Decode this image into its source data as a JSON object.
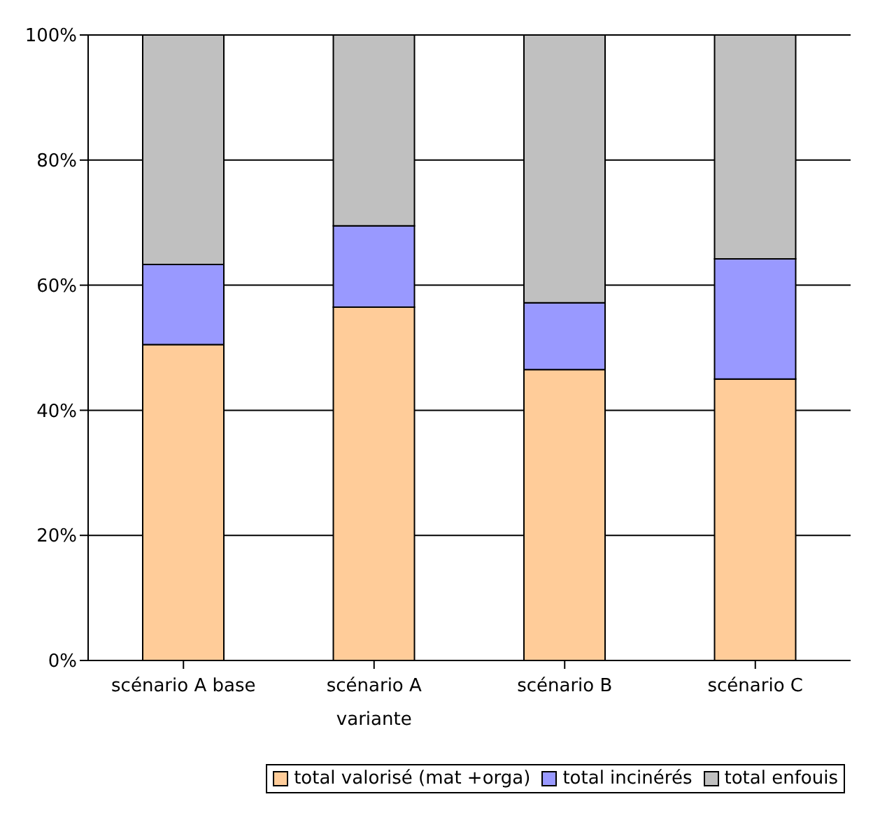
{
  "chart_data": {
    "type": "bar",
    "stacked": true,
    "categories": [
      "scénario A base",
      "scénario A variante",
      "scénario B",
      "scénario C"
    ],
    "series": [
      {
        "name": "total valorisé (mat +orga)",
        "color": "#ffcc99",
        "values": [
          50.5,
          56.5,
          46.5,
          45
        ]
      },
      {
        "name": "total incinérés",
        "color": "#9999ff",
        "values": [
          12.8,
          13,
          10.7,
          19.2
        ]
      },
      {
        "name": "total enfouis",
        "color": "#c0c0c0",
        "values": [
          36.7,
          30.5,
          42.8,
          35.8
        ]
      }
    ],
    "ylim": [
      0,
      100
    ],
    "yticks": [
      {
        "value": 0,
        "label": "0%"
      },
      {
        "value": 20,
        "label": "20%"
      },
      {
        "value": 40,
        "label": "40%"
      },
      {
        "value": 60,
        "label": "60%"
      },
      {
        "value": 80,
        "label": "80%"
      },
      {
        "value": 100,
        "label": "100%"
      }
    ],
    "grid": "y",
    "legend": "bottom"
  }
}
